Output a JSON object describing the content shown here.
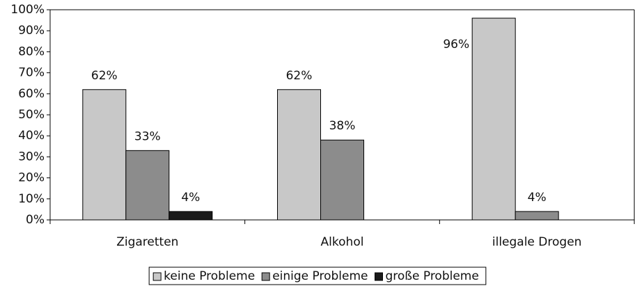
{
  "chart_data": {
    "type": "bar",
    "categories": [
      "Zigaretten",
      "Alkohol",
      "illegale Drogen"
    ],
    "series": [
      {
        "name": "keine Probleme",
        "color": "#c8c8c8",
        "values": [
          62,
          62,
          96
        ],
        "value_labels": [
          "62%",
          "62%",
          "96%"
        ]
      },
      {
        "name": "einige Probleme",
        "color": "#8c8c8c",
        "values": [
          33,
          38,
          4
        ],
        "value_labels": [
          "33%",
          "38%",
          "4%"
        ]
      },
      {
        "name": "große Probleme",
        "color": "#1a1a1a",
        "values": [
          4,
          null,
          null
        ],
        "value_labels": [
          "4%",
          null,
          null
        ]
      }
    ],
    "ylim": [
      0,
      100
    ],
    "yticks": [
      {
        "value": 0,
        "label": "0%"
      },
      {
        "value": 10,
        "label": "10%"
      },
      {
        "value": 20,
        "label": "20%"
      },
      {
        "value": 30,
        "label": "30%"
      },
      {
        "value": 40,
        "label": "40%"
      },
      {
        "value": 50,
        "label": "50%"
      },
      {
        "value": 60,
        "label": "60%"
      },
      {
        "value": 70,
        "label": "70%"
      },
      {
        "value": 80,
        "label": "80%"
      },
      {
        "value": 90,
        "label": "90%"
      },
      {
        "value": 100,
        "label": "100%"
      }
    ],
    "grid": false,
    "legend": "bottom"
  }
}
